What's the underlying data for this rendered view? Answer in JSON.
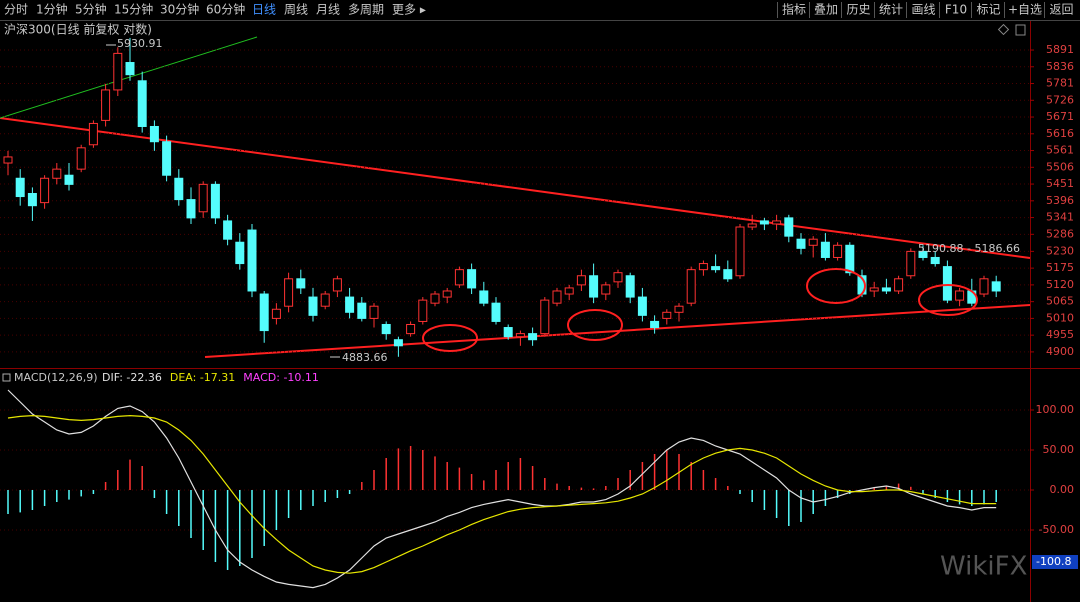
{
  "toolbar": {
    "periods": [
      "分时",
      "1分钟",
      "5分钟",
      "15分钟",
      "30分钟",
      "60分钟",
      "日线",
      "周线",
      "月线",
      "多周期",
      "更多 ▸"
    ],
    "active_period": 6,
    "tools": [
      "指标",
      "叠加",
      "历史",
      "统计",
      "画线",
      "F10",
      "标记",
      "+自选",
      "返回"
    ]
  },
  "chart_data": [
    {
      "type": "candlestick",
      "title": "沪深300(日线 前复权 对数)",
      "open": [
        5520,
        5470,
        5420,
        5390,
        5470,
        5480,
        5500,
        5580,
        5660,
        5760,
        5850,
        5790,
        5640,
        5590,
        5470,
        5400,
        5360,
        5450,
        5330,
        5260,
        5300,
        5090,
        5010,
        5050,
        5140,
        5080,
        5050,
        5100,
        5080,
        5060,
        5010,
        4990,
        4940,
        4960,
        5000,
        5060,
        5080,
        5120,
        5170,
        5100,
        5060,
        4980,
        4950,
        4960,
        4960,
        5060,
        5090,
        5120,
        5150,
        5090,
        5130,
        5150,
        5080,
        5000,
        5010,
        5030,
        5060,
        5170,
        5180,
        5170,
        5150,
        5310,
        5330,
        5320,
        5340,
        5270,
        5250,
        5260,
        5210,
        5250,
        5150,
        5100,
        5110,
        5100,
        5150,
        5230,
        5210,
        5180,
        5070,
        5100,
        5090,
        5130
      ],
      "high": [
        5560,
        5500,
        5440,
        5480,
        5520,
        5520,
        5580,
        5660,
        5780,
        5900,
        5931,
        5820,
        5660,
        5610,
        5500,
        5440,
        5460,
        5460,
        5350,
        5290,
        5320,
        5100,
        5060,
        5160,
        5170,
        5110,
        5100,
        5150,
        5110,
        5080,
        5060,
        5000,
        4950,
        5000,
        5080,
        5100,
        5110,
        5180,
        5190,
        5130,
        5080,
        4990,
        4970,
        4980,
        5080,
        5110,
        5120,
        5170,
        5190,
        5130,
        5170,
        5160,
        5110,
        5020,
        5040,
        5060,
        5180,
        5200,
        5220,
        5200,
        5320,
        5350,
        5340,
        5350,
        5350,
        5290,
        5280,
        5290,
        5260,
        5260,
        5170,
        5130,
        5140,
        5150,
        5240,
        5250,
        5230,
        5200,
        5110,
        5140,
        5150,
        5150
      ],
      "low": [
        5480,
        5380,
        5330,
        5370,
        5450,
        5430,
        5490,
        5570,
        5640,
        5740,
        5790,
        5620,
        5560,
        5460,
        5380,
        5320,
        5340,
        5320,
        5250,
        5170,
        5080,
        4930,
        4990,
        5030,
        5090,
        5000,
        5040,
        5080,
        5010,
        5000,
        4980,
        4940,
        4884,
        4950,
        4990,
        5050,
        5060,
        5110,
        5090,
        5050,
        4990,
        4940,
        4920,
        4920,
        4950,
        5050,
        5070,
        5100,
        5060,
        5070,
        5110,
        5060,
        5000,
        4960,
        4990,
        5000,
        5050,
        5150,
        5160,
        5130,
        5140,
        5300,
        5300,
        5300,
        5260,
        5220,
        5210,
        5200,
        5200,
        5150,
        5080,
        5080,
        5090,
        5090,
        5140,
        5200,
        5180,
        5060,
        5050,
        5050,
        5080,
        5080
      ],
      "close": [
        5540,
        5410,
        5380,
        5470,
        5500,
        5450,
        5570,
        5650,
        5760,
        5880,
        5810,
        5640,
        5590,
        5480,
        5400,
        5340,
        5450,
        5340,
        5270,
        5190,
        5100,
        4970,
        5040,
        5140,
        5110,
        5020,
        5090,
        5140,
        5030,
        5010,
        5050,
        4960,
        4920,
        4990,
        5070,
        5090,
        5100,
        5170,
        5110,
        5060,
        5000,
        4950,
        4960,
        4940,
        5070,
        5100,
        5110,
        5150,
        5080,
        5120,
        5160,
        5080,
        5020,
        4980,
        5030,
        5050,
        5170,
        5190,
        5170,
        5140,
        5310,
        5320,
        5320,
        5330,
        5280,
        5240,
        5270,
        5210,
        5250,
        5160,
        5090,
        5110,
        5100,
        5140,
        5230,
        5210,
        5190,
        5070,
        5100,
        5060,
        5140,
        5100
      ],
      "up_color": "#ff3232",
      "down_color": "#54fcfc",
      "ylim": [
        4857,
        5983
      ],
      "yticks": [
        5891,
        5836,
        5781,
        5726,
        5671,
        5616,
        5561,
        5506,
        5451,
        5396,
        5341,
        5286,
        5230,
        5175,
        5120,
        5065,
        5010,
        4955,
        4900
      ],
      "grid": true,
      "annotations": {
        "high": "5930.91",
        "low": "4883.66",
        "range": "5190.88 - 5186.66"
      }
    },
    {
      "type": "macd",
      "title": "MACD(12,26,9)",
      "macd": [
        -30,
        -28,
        -25,
        -20,
        -15,
        -12,
        -8,
        -5,
        10,
        25,
        38,
        30,
        -10,
        -30,
        -45,
        -60,
        -75,
        -90,
        -100,
        -95,
        -85,
        -70,
        -50,
        -35,
        -25,
        -20,
        -15,
        -10,
        -5,
        10,
        25,
        40,
        52,
        55,
        50,
        42,
        35,
        28,
        20,
        12,
        25,
        35,
        40,
        30,
        15,
        8,
        5,
        3,
        2,
        5,
        15,
        25,
        35,
        45,
        50,
        45,
        35,
        25,
        15,
        5,
        -5,
        -15,
        -25,
        -35,
        -45,
        -40,
        -30,
        -20,
        -10,
        -5,
        0,
        3,
        5,
        8,
        4,
        -5,
        -10,
        -15,
        -18,
        -20,
        -18,
        -15
      ],
      "series": [
        {
          "name": "DIF: -22.36",
          "color": "#e0e0e0",
          "values": [
            125,
            110,
            95,
            85,
            75,
            70,
            72,
            80,
            92,
            102,
            105,
            98,
            85,
            65,
            40,
            10,
            -20,
            -50,
            -75,
            -90,
            -100,
            -108,
            -115,
            -118,
            -120,
            -122,
            -118,
            -110,
            -100,
            -85,
            -70,
            -60,
            -55,
            -50,
            -45,
            -40,
            -33,
            -28,
            -22,
            -18,
            -15,
            -12,
            -15,
            -18,
            -20,
            -20,
            -18,
            -15,
            -15,
            -12,
            -5,
            5,
            20,
            35,
            50,
            60,
            65,
            62,
            55,
            50,
            45,
            35,
            25,
            15,
            0,
            -10,
            -15,
            -12,
            -8,
            -3,
            0,
            3,
            5,
            2,
            -5,
            -10,
            -15,
            -20,
            -22,
            -25,
            -22,
            -22
          ]
        },
        {
          "name": "DEA: -17.31",
          "color": "#e6e600",
          "values": [
            90,
            92,
            93,
            92,
            90,
            88,
            87,
            88,
            90,
            92,
            93,
            92,
            90,
            85,
            75,
            62,
            45,
            25,
            5,
            -15,
            -32,
            -48,
            -62,
            -75,
            -85,
            -95,
            -100,
            -103,
            -104,
            -102,
            -97,
            -90,
            -83,
            -76,
            -70,
            -63,
            -56,
            -50,
            -43,
            -37,
            -32,
            -27,
            -24,
            -22,
            -21,
            -20,
            -19,
            -18,
            -17,
            -16,
            -14,
            -10,
            -5,
            3,
            12,
            22,
            32,
            40,
            46,
            50,
            52,
            50,
            46,
            40,
            30,
            20,
            12,
            5,
            0,
            -2,
            -2,
            -1,
            0,
            0,
            -2,
            -5,
            -8,
            -11,
            -14,
            -17,
            -17,
            -17
          ]
        },
        {
          "name": "MACD: -10.11",
          "color": "#ff40ff"
        }
      ],
      "up_color": "#ff3232",
      "down_color": "#54fcfc",
      "ylim": [
        -140,
        127.5
      ],
      "yticks": [
        {
          "value": 100,
          "label": "100.00"
        },
        {
          "value": 50,
          "label": "50.00"
        },
        {
          "value": 0,
          "label": "0.00"
        },
        {
          "value": -50,
          "label": "-50.00"
        }
      ],
      "cursor_label": "-100.8"
    }
  ]
}
